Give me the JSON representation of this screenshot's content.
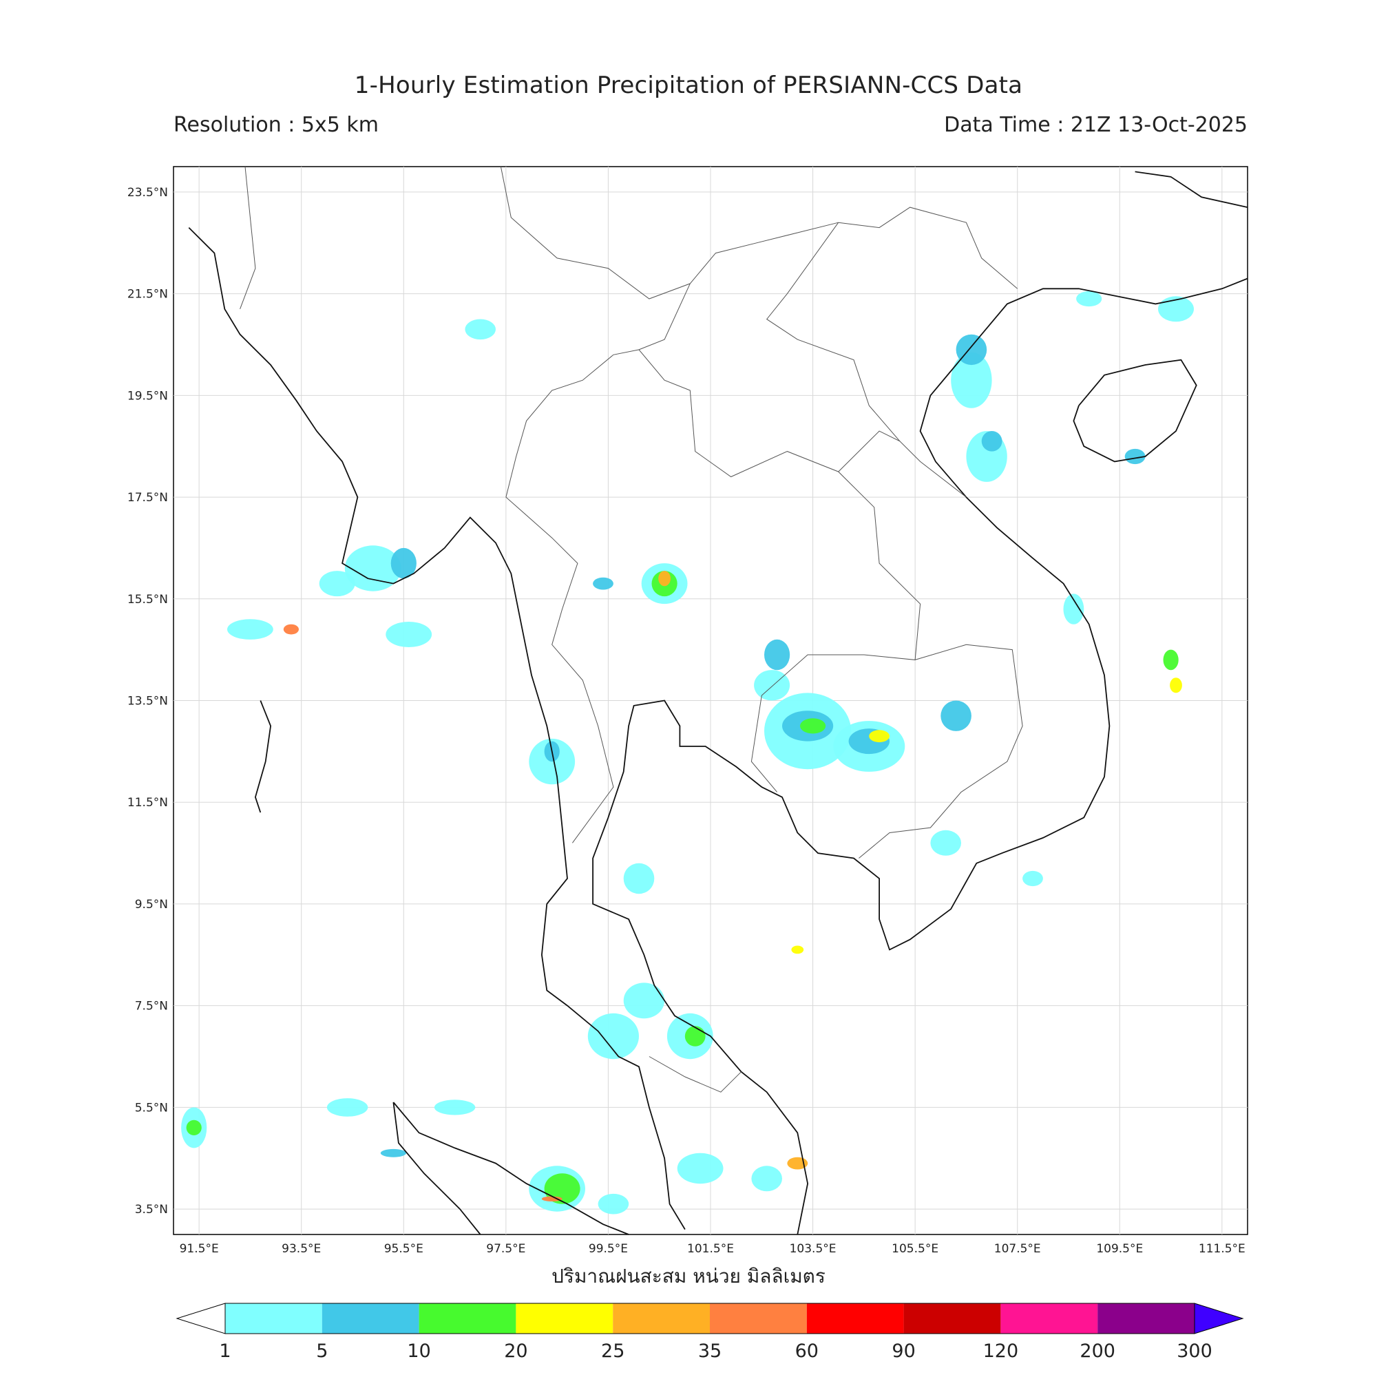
{
  "header": {
    "title": "1-Hourly Estimation Precipitation of PERSIANN-CCS Data",
    "resolution": "Resolution : 5x5 km",
    "data_time": "Data Time : 21Z 13-Oct-2025"
  },
  "map": {
    "lat_labels": [
      "23.5°N",
      "21.5°N",
      "19.5°N",
      "17.5°N",
      "15.5°N",
      "13.5°N",
      "11.5°N",
      "9.5°N",
      "7.5°N",
      "5.5°N",
      "3.5°N"
    ],
    "lon_labels": [
      "91.5°E",
      "93.5°E",
      "95.5°E",
      "97.5°E",
      "99.5°E",
      "101.5°E",
      "103.5°E",
      "105.5°E",
      "107.5°E",
      "109.5°E",
      "111.5°E"
    ],
    "xaxis_title": "ปริมาณฝนสะสม หน่วย มิลลิเมตร",
    "gridlines": true
  },
  "colorbar": {
    "ticks": [
      "1",
      "5",
      "10",
      "20",
      "25",
      "35",
      "60",
      "90",
      "120",
      "200",
      "300"
    ],
    "colors": [
      "#80ffff",
      "#41c8e8",
      "#47fa2e",
      "#ffff00",
      "#ffb024",
      "#ff8040",
      "#ff0000",
      "#cc0000",
      "#ff1493",
      "#8b008b"
    ],
    "under_color": "#ffffff",
    "over_color": "#3f00ff"
  }
}
